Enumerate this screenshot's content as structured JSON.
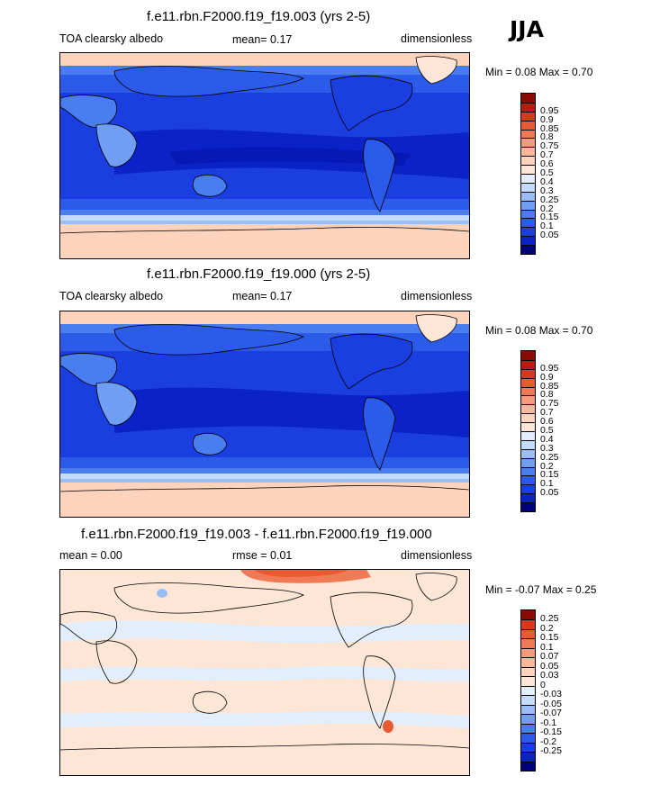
{
  "season": "JJA",
  "colors": {
    "albedo_levels": [
      "#00007a",
      "#0a22c8",
      "#1a3ee0",
      "#2c5bea",
      "#4a7ef0",
      "#6f9ef3",
      "#9bbdf6",
      "#c4dcfb",
      "#e2eefc",
      "#fde6d6",
      "#fcd3bd",
      "#f9b89c",
      "#f59b7a",
      "#f07a55",
      "#e85a33",
      "#d63a1c",
      "#b81c0c",
      "#8a0a04"
    ],
    "diff_levels": [
      "#00007a",
      "#0a22c8",
      "#1a3ee0",
      "#2c5bea",
      "#4a7ef0",
      "#6f9ef3",
      "#9bbdf6",
      "#c4dcfb",
      "#e2eefc",
      "#fde6d6",
      "#fcd3bd",
      "#f9b89c",
      "#f59b7a",
      "#f07a55",
      "#e85a33",
      "#d63a1c",
      "#8a0a04"
    ]
  },
  "panels": [
    {
      "title": "f.e11.rbn.F2000.f19_f19.003 (yrs 2-5)",
      "left_label": "TOA clearsky albedo",
      "mean_text": "mean=   0.17",
      "units": "dimensionless",
      "minmax_text": "Min =   0.08 Max =   0.70",
      "colorbar_ticks": [
        "0.95",
        "0.9",
        "0.85",
        "0.8",
        "0.75",
        "0.7",
        "0.6",
        "0.5",
        "0.4",
        "0.3",
        "0.25",
        "0.2",
        "0.15",
        "0.1",
        "0.05"
      ]
    },
    {
      "title": "f.e11.rbn.F2000.f19_f19.000 (yrs 2-5)",
      "left_label": "TOA clearsky albedo",
      "mean_text": "mean=   0.17",
      "units": "dimensionless",
      "minmax_text": "Min =   0.08 Max =   0.70",
      "colorbar_ticks": [
        "0.95",
        "0.9",
        "0.85",
        "0.8",
        "0.75",
        "0.7",
        "0.6",
        "0.5",
        "0.4",
        "0.3",
        "0.25",
        "0.2",
        "0.15",
        "0.1",
        "0.05"
      ]
    },
    {
      "title": "f.e11.rbn.F2000.f19_f19.003 - f.e11.rbn.F2000.f19_f19.000",
      "left_label": "mean =    0.00",
      "mean_text": "rmse =   0.01",
      "units": "dimensionless",
      "minmax_text": "Min =  -0.07 Max =   0.25",
      "colorbar_ticks": [
        "0.25",
        "0.2",
        "0.15",
        "0.1",
        "0.07",
        "0.05",
        "0.03",
        "0",
        "-0.03",
        "-0.05",
        "-0.07",
        "-0.1",
        "-0.15",
        "-0.2",
        "-0.25"
      ]
    }
  ],
  "chart_data": [
    {
      "type": "heatmap",
      "title": "f.e11.rbn.F2000.f19_f19.003 (yrs 2-5)",
      "variable": "TOA clearsky albedo",
      "season": "JJA",
      "mean": 0.17,
      "min": 0.08,
      "max": 0.7,
      "units": "dimensionless",
      "contour_levels": [
        0.05,
        0.1,
        0.15,
        0.2,
        0.25,
        0.3,
        0.4,
        0.5,
        0.6,
        0.7,
        0.75,
        0.8,
        0.85,
        0.9,
        0.95
      ]
    },
    {
      "type": "heatmap",
      "title": "f.e11.rbn.F2000.f19_f19.000 (yrs 2-5)",
      "variable": "TOA clearsky albedo",
      "season": "JJA",
      "mean": 0.17,
      "min": 0.08,
      "max": 0.7,
      "units": "dimensionless",
      "contour_levels": [
        0.05,
        0.1,
        0.15,
        0.2,
        0.25,
        0.3,
        0.4,
        0.5,
        0.6,
        0.7,
        0.75,
        0.8,
        0.85,
        0.9,
        0.95
      ]
    },
    {
      "type": "heatmap",
      "title": "f.e11.rbn.F2000.f19_f19.003 - f.e11.rbn.F2000.f19_f19.000",
      "variable": "difference",
      "season": "JJA",
      "mean": 0.0,
      "rmse": 0.01,
      "min": -0.07,
      "max": 0.25,
      "units": "dimensionless",
      "contour_levels": [
        -0.25,
        -0.2,
        -0.15,
        -0.1,
        -0.07,
        -0.05,
        -0.03,
        0,
        0.03,
        0.05,
        0.07,
        0.1,
        0.15,
        0.2,
        0.25
      ]
    }
  ]
}
